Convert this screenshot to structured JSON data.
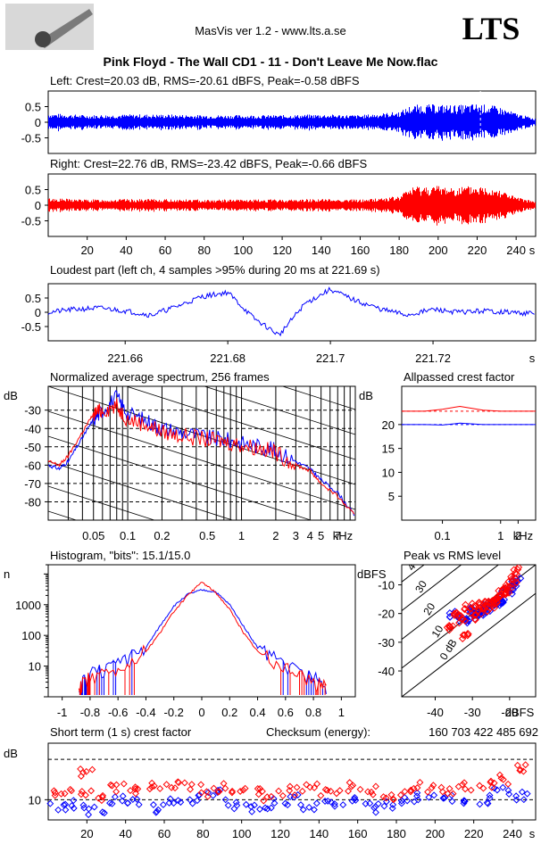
{
  "header": {
    "app_title": "MasVis ver 1.2 - www.lts.a.se",
    "logo_text": "LTS",
    "file_title": "Pink Floyd - The Wall CD1 - 11 - Don't Leave Me Now.flac"
  },
  "colors": {
    "left": "#0000ff",
    "right": "#ff0000",
    "grid": "#000000"
  },
  "chart_data": [
    {
      "id": "left-waveform",
      "type": "line",
      "title": "Left: Crest=20.03 dB, RMS=-20.61 dBFS, Peak=-0.58 dBFS",
      "y_ticks": [
        "0.5",
        "0",
        "-0.5"
      ],
      "ylim": [
        -1,
        1
      ],
      "xlim": [
        0,
        250
      ],
      "envelope": {
        "t": [
          0,
          20,
          40,
          60,
          80,
          100,
          120,
          140,
          160,
          180,
          185,
          190,
          200,
          210,
          220,
          230,
          240,
          250
        ],
        "amp": [
          0.25,
          0.2,
          0.22,
          0.22,
          0.2,
          0.2,
          0.2,
          0.22,
          0.2,
          0.3,
          0.45,
          0.5,
          0.5,
          0.48,
          0.52,
          0.45,
          0.25,
          0.1
        ]
      },
      "marker_x": 221.69
    },
    {
      "id": "right-waveform",
      "type": "line",
      "title": "Right: Crest=22.76 dB, RMS=-23.42 dBFS, Peak=-0.66 dBFS",
      "y_ticks": [
        "0.5",
        "0",
        "-0.5"
      ],
      "ylim": [
        -1,
        1
      ],
      "xlim": [
        0,
        250
      ],
      "x_ticks": [
        "20",
        "40",
        "60",
        "80",
        "100",
        "120",
        "140",
        "160",
        "180",
        "200",
        "220",
        "240"
      ],
      "x_unit": "s",
      "envelope": {
        "t": [
          0,
          20,
          40,
          60,
          80,
          100,
          120,
          140,
          160,
          180,
          185,
          190,
          200,
          210,
          220,
          230,
          240,
          250
        ],
        "amp": [
          0.2,
          0.16,
          0.17,
          0.17,
          0.16,
          0.16,
          0.16,
          0.18,
          0.16,
          0.25,
          0.5,
          0.55,
          0.55,
          0.52,
          0.55,
          0.5,
          0.22,
          0.1
        ]
      }
    },
    {
      "id": "loudest-part",
      "type": "line",
      "title": "Loudest part (left  ch, 4 samples >95% during 20 ms at 221.69 s)",
      "y_ticks": [
        "0.5",
        "0",
        "-0.5"
      ],
      "ylim": [
        -1,
        1
      ],
      "xlim": [
        221.645,
        221.74
      ],
      "x_ticks": [
        "221.66",
        "221.68",
        "221.7",
        "221.72"
      ],
      "x_unit": "s",
      "x": [
        221.645,
        221.65,
        221.655,
        221.66,
        221.665,
        221.67,
        221.675,
        221.68,
        221.685,
        221.69,
        221.695,
        221.7,
        221.705,
        221.71,
        221.715,
        221.72,
        221.725,
        221.73,
        221.735,
        221.74
      ],
      "y": [
        0.0,
        0.1,
        0.15,
        0.05,
        -0.1,
        0.2,
        0.55,
        0.7,
        -0.2,
        -0.8,
        0.3,
        0.8,
        0.4,
        0.1,
        -0.1,
        0.1,
        0.0,
        0.05,
        0.0,
        -0.05
      ]
    },
    {
      "id": "avg-spectrum",
      "type": "line",
      "title": "Normalized average spectrum, 256 frames",
      "ylabel": "dB",
      "y_ticks": [
        "-30",
        "-40",
        "-50",
        "-60",
        "-70",
        "-80"
      ],
      "ylim": [
        -90,
        -17
      ],
      "x_ticks": [
        "0.05",
        "0.1",
        "0.2",
        "0.5",
        "1",
        "2",
        "3",
        "4",
        "5",
        "7"
      ],
      "x_unit": "kHz",
      "x_scale": "log",
      "xlim": [
        0.02,
        10
      ],
      "series": [
        {
          "name": "",
          "color": "#0000ff",
          "x": [
            0.02,
            0.025,
            0.03,
            0.04,
            0.05,
            0.06,
            0.08,
            0.1,
            0.15,
            0.2,
            0.3,
            0.5,
            0.7,
            1,
            1.5,
            2,
            3,
            4,
            5,
            7,
            10
          ],
          "y": [
            -60,
            -62,
            -58,
            -45,
            -35,
            -30,
            -23,
            -32,
            -36,
            -40,
            -42,
            -45,
            -46,
            -48,
            -50,
            -52,
            -58,
            -62,
            -68,
            -75,
            -88
          ]
        },
        {
          "name": "",
          "color": "#ff0000",
          "x": [
            0.02,
            0.025,
            0.03,
            0.04,
            0.05,
            0.06,
            0.08,
            0.1,
            0.15,
            0.2,
            0.3,
            0.5,
            0.7,
            1,
            1.5,
            2,
            3,
            4,
            5,
            7,
            10
          ],
          "y": [
            -58,
            -60,
            -55,
            -42,
            -32,
            -30,
            -28,
            -35,
            -38,
            -42,
            -44,
            -46,
            -47,
            -49,
            -51,
            -53,
            -60,
            -63,
            -70,
            -77,
            -88
          ]
        }
      ]
    },
    {
      "id": "allpassed-crest",
      "type": "line",
      "title": "Allpassed crest factor",
      "ylabel": "dB",
      "y_ticks": [
        "20",
        "15",
        "10",
        "5"
      ],
      "ylim": [
        0,
        28
      ],
      "x_ticks": [
        "0.1",
        "1",
        "2"
      ],
      "x_unit": "kHz",
      "x_scale": "log",
      "xlim": [
        0.02,
        4
      ],
      "series": [
        {
          "name": "",
          "color": "#ff0000",
          "x": [
            0.02,
            0.05,
            0.1,
            0.2,
            0.5,
            1,
            2,
            4
          ],
          "y": [
            22.8,
            22.8,
            23.2,
            23.8,
            23,
            22.8,
            22.8,
            22.8
          ]
        },
        {
          "name": "",
          "color": "#0000ff",
          "x": [
            0.02,
            0.05,
            0.1,
            0.2,
            0.5,
            1,
            2,
            4
          ],
          "y": [
            20,
            20,
            19.9,
            20.3,
            20,
            20,
            20,
            20
          ]
        }
      ]
    },
    {
      "id": "histogram",
      "type": "line",
      "title": "Histogram, \"bits\": 15.1/15.0",
      "ylabel": "n",
      "y_ticks": [
        "1000",
        "100",
        "10"
      ],
      "y_scale": "log",
      "ylim": [
        1,
        20000
      ],
      "x_ticks": [
        "-1",
        "-0.8",
        "-0.6",
        "-0.4",
        "-0.2",
        "0",
        "0.2",
        "0.4",
        "0.6",
        "0.8",
        "1"
      ],
      "xlim": [
        -1.1,
        1.1
      ],
      "series": [
        {
          "name": "",
          "color": "#0000ff",
          "x": [
            -0.88,
            -0.8,
            -0.6,
            -0.4,
            -0.3,
            -0.2,
            -0.1,
            0,
            0.1,
            0.2,
            0.3,
            0.4,
            0.6,
            0.8,
            0.9
          ],
          "y": [
            2,
            5,
            10,
            40,
            200,
            900,
            2200,
            3000,
            2600,
            1000,
            200,
            40,
            10,
            4,
            2
          ]
        },
        {
          "name": "",
          "color": "#ff0000",
          "x": [
            -0.88,
            -0.8,
            -0.6,
            -0.4,
            -0.3,
            -0.2,
            -0.1,
            0,
            0.1,
            0.2,
            0.3,
            0.4,
            0.6,
            0.8,
            0.9
          ],
          "y": [
            2,
            4,
            8,
            30,
            120,
            600,
            2000,
            5500,
            2500,
            700,
            120,
            30,
            8,
            3,
            2
          ]
        }
      ]
    },
    {
      "id": "peak-vs-rms",
      "type": "scatter",
      "title": "Peak vs RMS level",
      "ylabel": "dBFS",
      "y_ticks": [
        "-10",
        "-20",
        "-30",
        "-40"
      ],
      "ylim": [
        -49,
        -3
      ],
      "x_ticks": [
        "-40",
        "-30",
        "-20"
      ],
      "x_unit": "dBFS",
      "xlim": [
        -49,
        -13
      ],
      "diagonal_labels": [
        "40",
        "30",
        "20",
        "10",
        "0 dB"
      ],
      "series": [
        {
          "name": "",
          "color": "#0000ff",
          "x": [
            -35,
            -33,
            -31,
            -30,
            -29,
            -28,
            -27,
            -26,
            -25,
            -24,
            -23,
            -22,
            -21,
            -20,
            -19,
            -18
          ],
          "y": [
            -20,
            -22,
            -23,
            -19,
            -21,
            -20,
            -18,
            -19,
            -17,
            -16,
            -16,
            -15,
            -13,
            -12,
            -10,
            -8
          ]
        },
        {
          "name": "",
          "color": "#ff0000",
          "x": [
            -36,
            -34,
            -33,
            -32,
            -31,
            -30,
            -29,
            -28,
            -27,
            -26,
            -25,
            -24,
            -23,
            -22,
            -21,
            -20,
            -19,
            -18
          ],
          "y": [
            -25,
            -20,
            -22,
            -28,
            -18,
            -21,
            -17,
            -19,
            -18,
            -16,
            -17,
            -15,
            -14,
            -13,
            -12,
            -10,
            -8,
            -5
          ]
        }
      ]
    },
    {
      "id": "short-term-crest",
      "type": "scatter",
      "title": "Short term (1 s) crest factor",
      "checksum_label": "Checksum (energy):",
      "checksum_value": "160 703 422 485 692",
      "ylabel": "dB",
      "y_ticks": [
        "10"
      ],
      "ylim": [
        5,
        24
      ],
      "x_ticks": [
        "20",
        "40",
        "60",
        "80",
        "100",
        "120",
        "140",
        "160",
        "180",
        "200",
        "220",
        "240"
      ],
      "x_unit": "s",
      "xlim": [
        0,
        252
      ],
      "series": [
        {
          "name": "",
          "color": "#0000ff",
          "x": [
            5,
            15,
            25,
            35,
            45,
            55,
            65,
            75,
            85,
            95,
            105,
            115,
            125,
            135,
            145,
            155,
            165,
            175,
            185,
            195,
            205,
            215,
            225,
            235,
            245
          ],
          "y": [
            8,
            9,
            7,
            10,
            9,
            8,
            9,
            10,
            12,
            9,
            8,
            9,
            10,
            8,
            9,
            10,
            8,
            9,
            10,
            11,
            10,
            9,
            10,
            12,
            11
          ]
        },
        {
          "name": "",
          "color": "#ff0000",
          "x": [
            5,
            15,
            20,
            25,
            35,
            45,
            55,
            65,
            75,
            85,
            95,
            105,
            115,
            125,
            135,
            145,
            155,
            165,
            175,
            185,
            195,
            205,
            215,
            225,
            235,
            245
          ],
          "y": [
            11,
            12,
            17,
            11,
            13,
            12,
            13,
            14,
            13,
            12,
            13,
            12,
            11,
            12,
            13,
            12,
            13,
            12,
            11,
            12,
            13,
            12,
            13,
            14,
            15,
            18
          ]
        }
      ]
    }
  ]
}
